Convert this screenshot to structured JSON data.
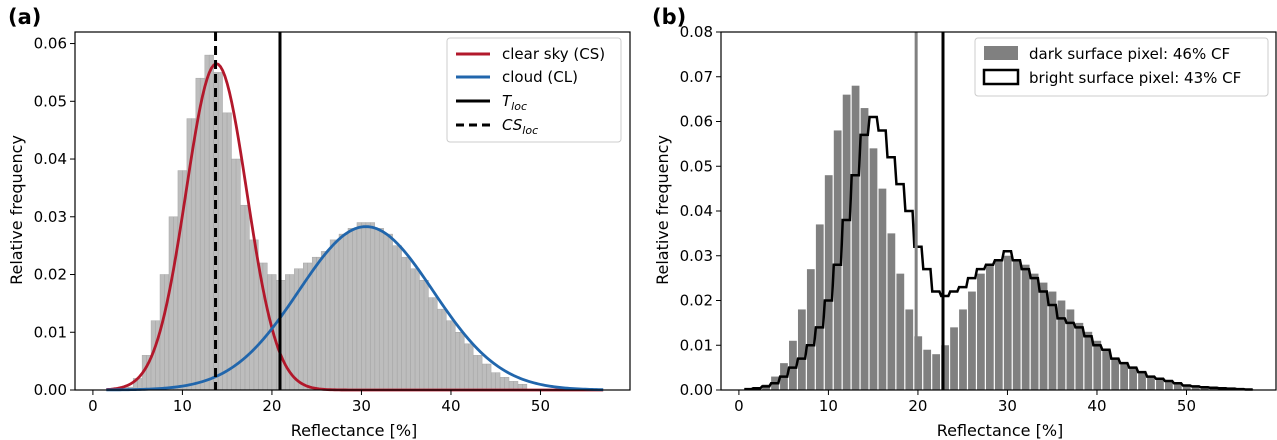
{
  "chart_data": [
    {
      "panel_label": "(a)",
      "type": "histogram",
      "xlabel": "Reflectance [%]",
      "ylabel": "Relative frequency",
      "xlim": [
        -2,
        60
      ],
      "ylim": [
        0,
        0.062
      ],
      "xticks": [
        0,
        10,
        20,
        30,
        40,
        50
      ],
      "yticks": [
        0.0,
        0.01,
        0.02,
        0.03,
        0.04,
        0.05,
        0.06
      ],
      "ytick_labels": [
        "0.00",
        "0.01",
        "0.02",
        "0.03",
        "0.04",
        "0.05",
        "0.06"
      ],
      "bin_width": 0.6,
      "histogram": {
        "x": [
          4,
          5,
          6,
          7,
          8,
          9,
          10,
          11,
          12,
          13,
          14,
          15,
          16,
          17,
          18,
          19,
          20,
          21,
          22,
          23,
          24,
          25,
          26,
          27,
          28,
          29,
          30,
          31,
          32,
          33,
          34,
          35,
          36,
          37,
          38,
          39,
          40,
          41,
          42,
          43,
          44,
          45,
          46,
          47,
          48
        ],
        "y": [
          0.0005,
          0.002,
          0.006,
          0.012,
          0.02,
          0.03,
          0.038,
          0.047,
          0.054,
          0.058,
          0.055,
          0.048,
          0.04,
          0.032,
          0.026,
          0.022,
          0.02,
          0.019,
          0.02,
          0.021,
          0.022,
          0.023,
          0.024,
          0.026,
          0.027,
          0.028,
          0.029,
          0.029,
          0.028,
          0.027,
          0.025,
          0.023,
          0.021,
          0.019,
          0.016,
          0.014,
          0.012,
          0.01,
          0.008,
          0.006,
          0.0045,
          0.003,
          0.0022,
          0.0015,
          0.001
        ],
        "color": "#bdbdbd"
      },
      "series": [
        {
          "name": "clear sky (CS)",
          "kind": "line",
          "color": "#b2182b",
          "mu": 13.8,
          "sigma": 3.4,
          "amplitude": 0.0565,
          "x_range": [
            1.5,
            57
          ]
        },
        {
          "name": "cloud (CL)",
          "kind": "line",
          "color": "#2166ac",
          "mu": 30.5,
          "sigma": 7.5,
          "amplitude": 0.0283,
          "x_range": [
            1.5,
            57
          ]
        }
      ],
      "vlines": [
        {
          "name": "T",
          "subscript": "loc",
          "x": 20.9,
          "style": "solid",
          "color": "#000000"
        },
        {
          "name": "CS",
          "subscript": "loc",
          "x": 13.7,
          "style": "dashed",
          "color": "#000000"
        }
      ],
      "legend_position": "top-right"
    },
    {
      "panel_label": "(b)",
      "type": "histogram",
      "xlabel": "Reflectance [%]",
      "ylabel": "Relative frequency",
      "xlim": [
        -2,
        60
      ],
      "ylim": [
        0,
        0.08
      ],
      "xticks": [
        0,
        10,
        20,
        30,
        40,
        50
      ],
      "yticks": [
        0.0,
        0.01,
        0.02,
        0.03,
        0.04,
        0.05,
        0.06,
        0.07,
        0.08
      ],
      "ytick_labels": [
        "0.00",
        "0.01",
        "0.02",
        "0.03",
        "0.04",
        "0.05",
        "0.06",
        "0.07",
        "0.08"
      ],
      "bin_width": 0.8,
      "series": [
        {
          "name": "dark surface pixel: 46% CF",
          "kind": "filled",
          "color": "#808080",
          "x": [
            1,
            2,
            3,
            4,
            5,
            6,
            7,
            8,
            9,
            10,
            11,
            12,
            13,
            14,
            15,
            16,
            17,
            18,
            19,
            20,
            21,
            22,
            23,
            24,
            25,
            26,
            27,
            28,
            29,
            30,
            31,
            32,
            33,
            34,
            35,
            36,
            37,
            38,
            39,
            40,
            41,
            42,
            43,
            44,
            45,
            46,
            47,
            48,
            49,
            50,
            51,
            52,
            53,
            54,
            55,
            56,
            57
          ],
          "y": [
            0.0002,
            0.0005,
            0.0012,
            0.003,
            0.006,
            0.011,
            0.018,
            0.027,
            0.037,
            0.048,
            0.058,
            0.066,
            0.068,
            0.063,
            0.054,
            0.045,
            0.035,
            0.026,
            0.018,
            0.012,
            0.009,
            0.008,
            0.01,
            0.014,
            0.018,
            0.022,
            0.026,
            0.028,
            0.029,
            0.03,
            0.029,
            0.028,
            0.026,
            0.024,
            0.022,
            0.02,
            0.018,
            0.015,
            0.013,
            0.011,
            0.009,
            0.007,
            0.006,
            0.005,
            0.004,
            0.003,
            0.0025,
            0.002,
            0.0015,
            0.0012,
            0.001,
            0.0008,
            0.0006,
            0.0005,
            0.0004,
            0.0003,
            0.0002
          ]
        },
        {
          "name": "bright surface pixel: 43% CF",
          "kind": "step",
          "color": "#000000",
          "x": [
            1,
            2,
            3,
            4,
            5,
            6,
            7,
            8,
            9,
            10,
            11,
            12,
            13,
            14,
            15,
            16,
            17,
            18,
            19,
            20,
            21,
            22,
            23,
            24,
            25,
            26,
            27,
            28,
            29,
            30,
            31,
            32,
            33,
            34,
            35,
            36,
            37,
            38,
            39,
            40,
            41,
            42,
            43,
            44,
            45,
            46,
            47,
            48,
            49,
            50,
            51,
            52,
            53,
            54,
            55,
            56,
            57
          ],
          "y": [
            0.0002,
            0.0004,
            0.0008,
            0.0015,
            0.003,
            0.005,
            0.007,
            0.01,
            0.014,
            0.02,
            0.028,
            0.038,
            0.048,
            0.057,
            0.061,
            0.058,
            0.052,
            0.046,
            0.04,
            0.032,
            0.027,
            0.022,
            0.021,
            0.022,
            0.023,
            0.025,
            0.027,
            0.028,
            0.029,
            0.031,
            0.029,
            0.027,
            0.025,
            0.022,
            0.019,
            0.016,
            0.015,
            0.014,
            0.012,
            0.01,
            0.009,
            0.007,
            0.006,
            0.005,
            0.004,
            0.003,
            0.0025,
            0.002,
            0.0015,
            0.001,
            0.0008,
            0.0006,
            0.0005,
            0.0004,
            0.0003,
            0.0002,
            0.0001
          ]
        }
      ],
      "vlines": [
        {
          "x": 19.8,
          "style": "solid",
          "color": "#808080"
        },
        {
          "x": 22.8,
          "style": "solid",
          "color": "#000000"
        }
      ],
      "legend_position": "top-right"
    }
  ]
}
